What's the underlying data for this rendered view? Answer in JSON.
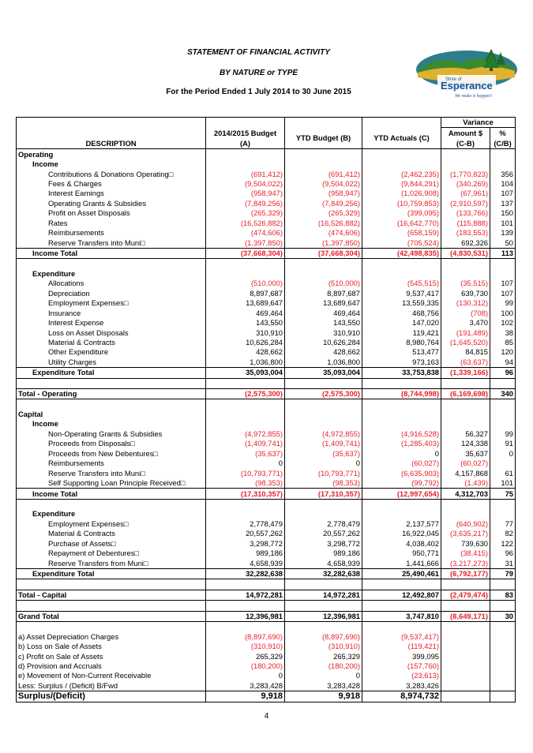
{
  "header": {
    "title": "STATEMENT OF FINANCIAL ACTIVITY",
    "subtitle": "BY NATURE or TYPE",
    "period": "For the Period Ended 1 July 2014 to 30 June 2015"
  },
  "logo": {
    "top_text": "Shire of",
    "name": "Esperance",
    "tagline": "We make it happen!"
  },
  "columns": {
    "variance": "Variance",
    "description": "DESCRIPTION",
    "budget_line1": "2014/2015 Budget",
    "budget_line2": "(A)",
    "ytd_budget": "YTD Budget (B)",
    "ytd_actuals": "YTD Actuals (C)",
    "amount_line1": "Amount $",
    "amount_line2": "(C-B)",
    "pct_line1": "%",
    "pct_line2": "(C/B)"
  },
  "rows": [
    {
      "label": "Operating",
      "cls": "b",
      "ind": 0
    },
    {
      "label": "Income",
      "cls": "b",
      "ind": 1
    },
    {
      "label": "Contributions & Donations Operating□",
      "ind": 2,
      "a": "(691,412)",
      "b": "(691,412)",
      "c": "(2,462,235)",
      "d": "(1,770,823)",
      "e": "356"
    },
    {
      "label": "Fees & Charges",
      "ind": 2,
      "a": "(9,504,022)",
      "b": "(9,504,022)",
      "c": "(9,844,291)",
      "d": "(340,269)",
      "e": "104"
    },
    {
      "label": "Interest Earnings",
      "ind": 2,
      "a": "(958,947)",
      "b": "(958,947)",
      "c": "(1,026,908)",
      "d": "(67,961)",
      "e": "107"
    },
    {
      "label": "Operating Grants & Subsidies",
      "ind": 2,
      "a": "(7,849,256)",
      "b": "(7,849,256)",
      "c": "(10,759,853)",
      "d": "(2,910,597)",
      "e": "137"
    },
    {
      "label": "Profit on Asset Disposals",
      "ind": 2,
      "a": "(265,329)",
      "b": "(265,329)",
      "c": "(399,095)",
      "d": "(133,766)",
      "e": "150"
    },
    {
      "label": "Rates",
      "ind": 2,
      "a": "(16,526,882)",
      "b": "(16,526,882)",
      "c": "(16,642,770)",
      "d": "(115,888)",
      "e": "101"
    },
    {
      "label": "Reimbursements",
      "ind": 2,
      "a": "(474,606)",
      "b": "(474,606)",
      "c": "(658,159)",
      "d": "(183,553)",
      "e": "139"
    },
    {
      "label": "Reserve Transfers into Muni□",
      "ind": 2,
      "a": "(1,397,850)",
      "b": "(1,397,850)",
      "c": "(705,524)",
      "d": "692,326",
      "e": "50"
    },
    {
      "label": "Income Total",
      "cls": "b",
      "ind": 1,
      "line": "top bot",
      "a": "(37,668,304)",
      "b": "(37,668,304)",
      "c": "(42,498,835)",
      "d": "(4,830,531)",
      "e": "113"
    },
    {
      "label": "",
      "ind": 0
    },
    {
      "label": "Expenditure",
      "cls": "b",
      "ind": 1
    },
    {
      "label": "Allocations",
      "ind": 2,
      "a": "(510,000)",
      "b": "(510,000)",
      "c": "(545,515)",
      "d": "(35,515)",
      "e": "107"
    },
    {
      "label": "Depreciation",
      "ind": 2,
      "a": "8,897,687",
      "b": "8,897,687",
      "c": "9,537,417",
      "d": "639,730",
      "e": "107"
    },
    {
      "label": "Employment Expenses□",
      "ind": 2,
      "a": "13,689,647",
      "b": "13,689,647",
      "c": "13,559,335",
      "d": "(130,312)",
      "e": "99"
    },
    {
      "label": "Insurance",
      "ind": 2,
      "a": "469,464",
      "b": "469,464",
      "c": "468,756",
      "d": "(708)",
      "e": "100"
    },
    {
      "label": "Interest Expense",
      "ind": 2,
      "a": "143,550",
      "b": "143,550",
      "c": "147,020",
      "d": "3,470",
      "e": "102"
    },
    {
      "label": "Loss on Asset Disposals",
      "ind": 2,
      "a": "310,910",
      "b": "310,910",
      "c": "119,421",
      "d": "(191,489)",
      "e": "38"
    },
    {
      "label": "Material & Contracts",
      "ind": 2,
      "a": "10,626,284",
      "b": "10,626,284",
      "c": "8,980,764",
      "d": "(1,645,520)",
      "e": "85"
    },
    {
      "label": "Other Expenditure",
      "ind": 2,
      "a": "428,662",
      "b": "428,662",
      "c": "513,477",
      "d": "84,815",
      "e": "120"
    },
    {
      "label": "Utility Charges",
      "ind": 2,
      "a": "1,036,800",
      "b": "1,036,800",
      "c": "973,163",
      "d": "(63,637)",
      "e": "94"
    },
    {
      "label": "Expenditure Total",
      "cls": "b",
      "ind": 1,
      "line": "top bot",
      "a": "35,093,004",
      "b": "35,093,004",
      "c": "33,753,838",
      "d": "(1,339,166)",
      "e": "96"
    },
    {
      "label": "",
      "ind": 0
    },
    {
      "label": "Total - Operating",
      "cls": "b",
      "ind": 0,
      "line": "top bot",
      "a": "(2,575,300)",
      "b": "(2,575,300)",
      "c": "(8,744,998)",
      "d": "(6,169,698)",
      "e": "340"
    },
    {
      "label": "",
      "ind": 0
    },
    {
      "label": "Capital",
      "cls": "b",
      "ind": 0
    },
    {
      "label": "Income",
      "cls": "b",
      "ind": 1
    },
    {
      "label": "Non-Operating Grants & Subsidies",
      "ind": 2,
      "a": "(4,972,855)",
      "b": "(4,972,855)",
      "c": "(4,916,528)",
      "d": "56,327",
      "e": "99"
    },
    {
      "label": "Proceeds from Disposals□",
      "ind": 2,
      "a": "(1,409,741)",
      "b": "(1,409,741)",
      "c": "(1,285,403)",
      "d": "124,338",
      "e": "91"
    },
    {
      "label": "Proceeds from New Debentures□",
      "ind": 2,
      "a": "(35,637)",
      "b": "(35,637)",
      "c": "0",
      "d": "35,637",
      "e": "0"
    },
    {
      "label": "Reimbursements",
      "ind": 2,
      "a": "0",
      "b": "0",
      "c": "(60,027)",
      "d": "(60,027)",
      "e": ""
    },
    {
      "label": "Reserve Transfers into Muni□",
      "ind": 2,
      "a": "(10,793,771)",
      "b": "(10,793,771)",
      "c": "(6,635,903)",
      "d": "4,157,868",
      "e": "61"
    },
    {
      "label": "Self Supporting Loan Principle Received□",
      "ind": 2,
      "a": "(98,353)",
      "b": "(98,353)",
      "c": "(99,792)",
      "d": "(1,439)",
      "e": "101"
    },
    {
      "label": "Income Total",
      "cls": "b",
      "ind": 1,
      "line": "top bot",
      "a": "(17,310,357)",
      "b": "(17,310,357)",
      "c": "(12,997,654)",
      "d": "4,312,703",
      "e": "75"
    },
    {
      "label": "",
      "ind": 0
    },
    {
      "label": "Expenditure",
      "cls": "b",
      "ind": 1
    },
    {
      "label": "Employment Expenses□",
      "ind": 2,
      "a": "2,778,479",
      "b": "2,778,479",
      "c": "2,137,577",
      "d": "(640,902)",
      "e": "77"
    },
    {
      "label": "Material & Contracts",
      "ind": 2,
      "a": "20,557,262",
      "b": "20,557,262",
      "c": "16,922,045",
      "d": "(3,635,217)",
      "e": "82"
    },
    {
      "label": "Purchase of Assets□",
      "ind": 2,
      "a": "3,298,772",
      "b": "3,298,772",
      "c": "4,038,402",
      "d": "739,630",
      "e": "122"
    },
    {
      "label": "Repayment of Debentures□",
      "ind": 2,
      "a": "989,186",
      "b": "989,186",
      "c": "950,771",
      "d": "(38,415)",
      "e": "96"
    },
    {
      "label": "Reserve Transfers from Muni□",
      "ind": 2,
      "a": "4,658,939",
      "b": "4,658,939",
      "c": "1,441,666",
      "d": "(3,217,273)",
      "e": "31"
    },
    {
      "label": "Expenditure Total",
      "cls": "b",
      "ind": 1,
      "line": "top bot",
      "a": "32,282,638",
      "b": "32,282,638",
      "c": "25,490,461",
      "d": "(6,792,177)",
      "e": "79"
    },
    {
      "label": "",
      "ind": 0
    },
    {
      "label": "Total - Capital",
      "cls": "b",
      "ind": 0,
      "line": "top bot",
      "a": "14,972,281",
      "b": "14,972,281",
      "c": "12,492,807",
      "d": "(2,479,474)",
      "e": "83"
    },
    {
      "label": "",
      "ind": 0
    },
    {
      "label": "Grand Total",
      "cls": "b",
      "ind": 0,
      "line": "top bot",
      "a": "12,396,981",
      "b": "12,396,981",
      "c": "3,747,810",
      "d": "(8,649,171)",
      "e": "30"
    },
    {
      "label": "",
      "ind": 0
    },
    {
      "label": "a) Asset Depreciation Charges",
      "ind": 0,
      "a": "(8,897,690)",
      "b": "(8,897,690)",
      "c": "(9,537,417)"
    },
    {
      "label": "b) Loss on Sale of Assets",
      "ind": 0,
      "a": "(310,910)",
      "b": "(310,910)",
      "c": "(119,421)"
    },
    {
      "label": "c) Profit on Sale of Assets",
      "ind": 0,
      "a": "265,329",
      "b": "265,329",
      "c": "399,095"
    },
    {
      "label": "d) Provision and Accruals",
      "ind": 0,
      "a": "(180,200)",
      "b": "(180,200)",
      "c": "(157,760)"
    },
    {
      "label": "e) Movement of Non-Current Receivable",
      "ind": 0,
      "a": "0",
      "b": "0",
      "c": "(23,613)"
    },
    {
      "label": "Less: Surplus / (Deficit) B/Fwd",
      "ind": 0,
      "a": "3,283,428",
      "b": "3,283,428",
      "c": "3,283,426"
    },
    {
      "label": "Surplus/(Deficit)",
      "cls": "b big",
      "ind": 0,
      "line": "top bot",
      "a": "9,918",
      "b": "9,918",
      "c": "8,974,732"
    }
  ],
  "page_number": "4",
  "colors": {
    "negative": "#e8202a",
    "text": "#000000"
  }
}
